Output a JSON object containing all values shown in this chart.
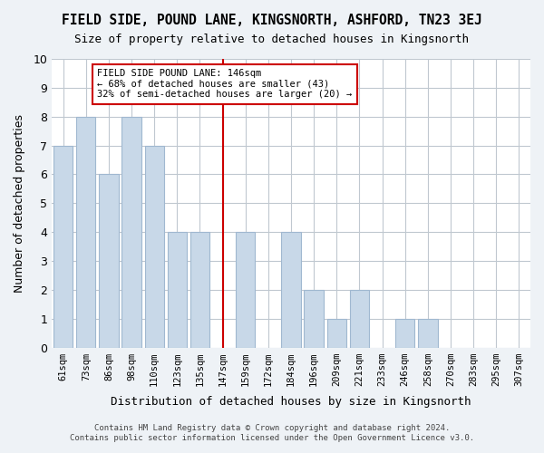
{
  "title": "FIELD SIDE, POUND LANE, KINGSNORTH, ASHFORD, TN23 3EJ",
  "subtitle": "Size of property relative to detached houses in Kingsnorth",
  "xlabel": "Distribution of detached houses by size in Kingsnorth",
  "ylabel": "Number of detached properties",
  "footer_line1": "Contains HM Land Registry data © Crown copyright and database right 2024.",
  "footer_line2": "Contains public sector information licensed under the Open Government Licence v3.0.",
  "bin_labels": [
    "61sqm",
    "73sqm",
    "86sqm",
    "98sqm",
    "110sqm",
    "123sqm",
    "135sqm",
    "147sqm",
    "159sqm",
    "172sqm",
    "184sqm",
    "196sqm",
    "209sqm",
    "221sqm",
    "233sqm",
    "246sqm",
    "258sqm",
    "270sqm",
    "283sqm",
    "295sqm",
    "307sqm"
  ],
  "bar_heights": [
    7,
    8,
    6,
    8,
    7,
    4,
    4,
    0,
    4,
    0,
    4,
    2,
    1,
    2,
    0,
    1,
    1,
    0,
    0,
    0,
    0
  ],
  "bar_color": "#c8d8e8",
  "bar_edge_color": "#a0b8d0",
  "vline_x_index": 7,
  "vline_color": "#cc0000",
  "annotation_title": "FIELD SIDE POUND LANE: 146sqm",
  "annotation_line1": "← 68% of detached houses are smaller (43)",
  "annotation_line2": "32% of semi-detached houses are larger (20) →",
  "annotation_box_color": "#ffffff",
  "annotation_box_edge": "#cc0000",
  "ylim": [
    0,
    10
  ],
  "yticks": [
    0,
    1,
    2,
    3,
    4,
    5,
    6,
    7,
    8,
    9,
    10
  ],
  "background_color": "#eef2f6",
  "plot_bg_color": "#ffffff",
  "grid_color": "#c0c8d0"
}
